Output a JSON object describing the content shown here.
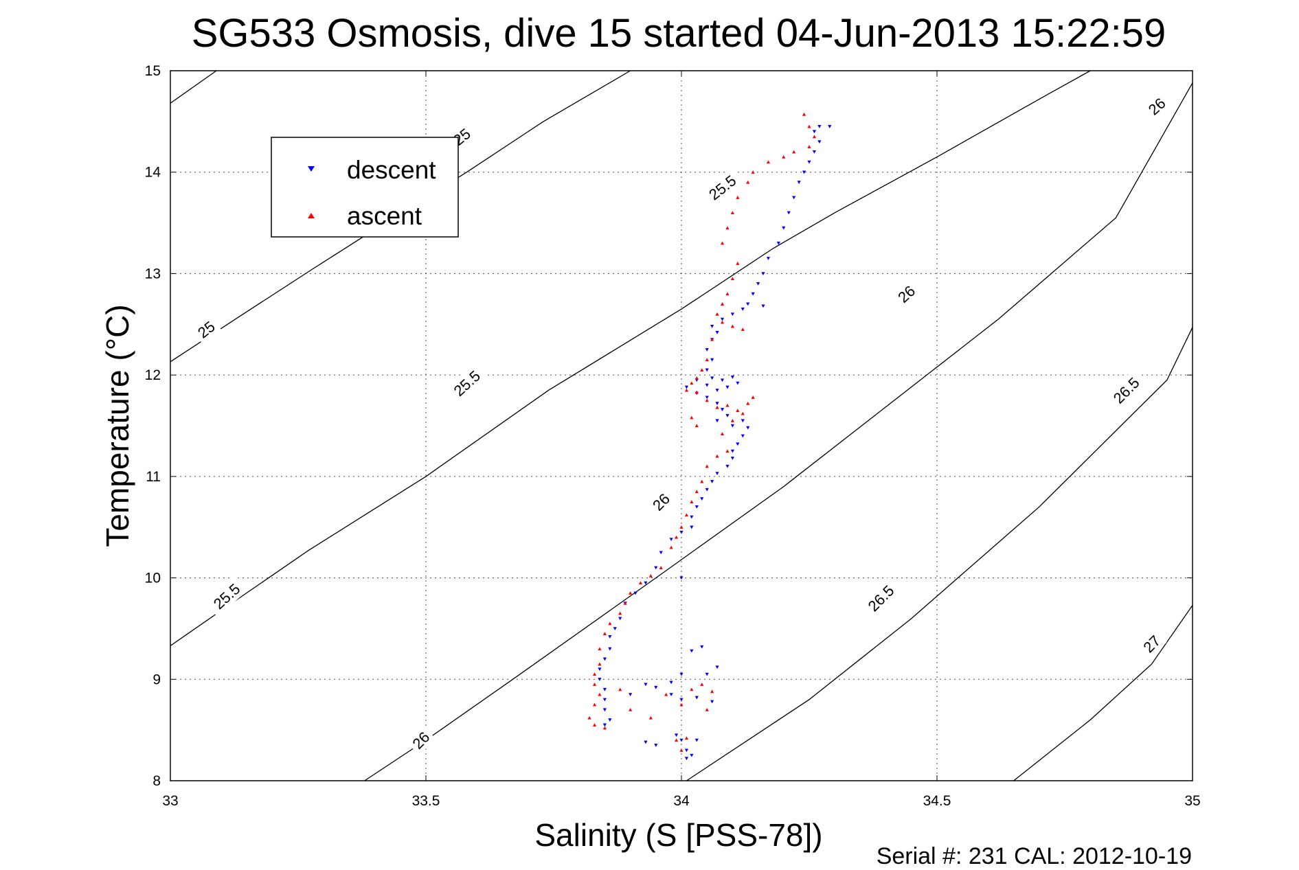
{
  "chart_data": {
    "type": "scatter",
    "title": "SG533 Osmosis, dive 15 started 04-Jun-2013 15:22:59",
    "xlabel": "Salinity (S [PSS-78])",
    "ylabel": "Temperature (°C)",
    "xlim": [
      33,
      35
    ],
    "ylim": [
      8,
      15
    ],
    "x_ticks": [
      "33",
      "33.5",
      "34",
      "34.5",
      "35"
    ],
    "y_ticks": [
      "8",
      "9",
      "10",
      "11",
      "12",
      "13",
      "14",
      "15"
    ],
    "grid": true,
    "legend_position": "top-left",
    "footer": "Serial #: 231  CAL: 2012-10-19",
    "density_contours": [
      {
        "value": "25",
        "points": [
          [
            33,
            14.68
          ],
          [
            33.09,
            15.0
          ]
        ]
      },
      {
        "value": "25",
        "points": [
          [
            33,
            12.13
          ],
          [
            33.13,
            12.56
          ],
          [
            33.28,
            13.05
          ],
          [
            33.42,
            13.5
          ],
          [
            33.58,
            14.0
          ],
          [
            33.73,
            14.5
          ],
          [
            33.9,
            15.0
          ]
        ]
      },
      {
        "value": "25.5",
        "points": [
          [
            33,
            9.33
          ],
          [
            33.12,
            9.75
          ],
          [
            33.27,
            10.27
          ],
          [
            33.5,
            11.0
          ],
          [
            33.74,
            11.85
          ],
          [
            34.0,
            12.65
          ],
          [
            34.18,
            13.25
          ],
          [
            34.3,
            13.6
          ],
          [
            34.5,
            14.15
          ],
          [
            34.7,
            14.72
          ],
          [
            34.8,
            15.0
          ]
        ]
      },
      {
        "value": "26",
        "points": [
          [
            33.38,
            8.0
          ],
          [
            33.5,
            8.4
          ],
          [
            33.67,
            9.0
          ],
          [
            33.95,
            10.0
          ],
          [
            34.2,
            10.9
          ],
          [
            34.48,
            12.0
          ],
          [
            34.62,
            12.55
          ],
          [
            34.85,
            13.55
          ],
          [
            35.0,
            14.88
          ]
        ]
      },
      {
        "value": "26.5",
        "points": [
          [
            34.01,
            8.0
          ],
          [
            34.25,
            8.8
          ],
          [
            34.45,
            9.6
          ],
          [
            34.7,
            10.7
          ],
          [
            34.95,
            11.95
          ],
          [
            35.0,
            12.47
          ]
        ]
      },
      {
        "value": "27",
        "points": [
          [
            34.65,
            8.0
          ],
          [
            34.8,
            8.6
          ],
          [
            34.92,
            9.15
          ],
          [
            35.0,
            9.73
          ]
        ]
      }
    ],
    "contour_labels": [
      {
        "text": "25",
        "x": 33.57,
        "y": 14.35,
        "angle": -38
      },
      {
        "text": "25",
        "x": 33.07,
        "y": 12.45,
        "angle": -38
      },
      {
        "text": "25.5",
        "x": 34.08,
        "y": 13.85,
        "angle": -38
      },
      {
        "text": "25.5",
        "x": 33.58,
        "y": 11.92,
        "angle": -42
      },
      {
        "text": "25.5",
        "x": 33.11,
        "y": 9.82,
        "angle": -42
      },
      {
        "text": "26",
        "x": 35.0,
        "y": 14.65,
        "angle": -42,
        "display_x": 34.93
      },
      {
        "text": "26",
        "x": 34.44,
        "y": 12.8,
        "angle": -42
      },
      {
        "text": "26",
        "x": 33.96,
        "y": 10.75,
        "angle": -45
      },
      {
        "text": "26",
        "x": 33.49,
        "y": 8.4,
        "angle": -45
      },
      {
        "text": "26.5",
        "x": 34.87,
        "y": 11.85,
        "angle": -45
      },
      {
        "text": "26.5",
        "x": 34.39,
        "y": 9.8,
        "angle": -45
      },
      {
        "text": "27",
        "x": 34.92,
        "y": 9.35,
        "angle": -45
      }
    ],
    "series": [
      {
        "name": "descent",
        "marker": "triangle-down",
        "color": "#0000ff",
        "points": [
          [
            34.27,
            14.45
          ],
          [
            34.29,
            14.45
          ],
          [
            34.26,
            14.4
          ],
          [
            34.27,
            14.3
          ],
          [
            34.26,
            14.2
          ],
          [
            34.25,
            14.1
          ],
          [
            34.24,
            14.0
          ],
          [
            34.23,
            13.9
          ],
          [
            34.22,
            13.75
          ],
          [
            34.21,
            13.6
          ],
          [
            34.2,
            13.45
          ],
          [
            34.19,
            13.3
          ],
          [
            34.17,
            13.15
          ],
          [
            34.16,
            13.0
          ],
          [
            34.15,
            12.9
          ],
          [
            34.14,
            12.8
          ],
          [
            34.13,
            12.7
          ],
          [
            34.16,
            12.68
          ],
          [
            34.12,
            12.65
          ],
          [
            34.1,
            12.6
          ],
          [
            34.08,
            12.55
          ],
          [
            34.06,
            12.48
          ],
          [
            34.07,
            12.42
          ],
          [
            34.06,
            12.35
          ],
          [
            34.05,
            12.25
          ],
          [
            34.06,
            12.15
          ],
          [
            34.05,
            12.05
          ],
          [
            34.06,
            11.97
          ],
          [
            34.08,
            11.95
          ],
          [
            34.1,
            11.98
          ],
          [
            34.11,
            11.92
          ],
          [
            34.09,
            11.88
          ],
          [
            34.07,
            11.85
          ],
          [
            34.05,
            11.9
          ],
          [
            34.03,
            11.95
          ],
          [
            34.01,
            11.88
          ],
          [
            34.03,
            11.82
          ],
          [
            34.05,
            11.78
          ],
          [
            34.07,
            11.72
          ],
          [
            34.08,
            11.66
          ],
          [
            34.09,
            11.6
          ],
          [
            34.07,
            11.55
          ],
          [
            34.1,
            11.5
          ],
          [
            34.12,
            11.55
          ],
          [
            34.13,
            11.48
          ],
          [
            34.12,
            11.4
          ],
          [
            34.11,
            11.32
          ],
          [
            34.1,
            11.25
          ],
          [
            34.1,
            11.18
          ],
          [
            34.09,
            11.1
          ],
          [
            34.07,
            11.03
          ],
          [
            34.06,
            10.95
          ],
          [
            34.05,
            10.87
          ],
          [
            34.04,
            10.78
          ],
          [
            34.03,
            10.7
          ],
          [
            34.02,
            10.6
          ],
          [
            34.02,
            10.5
          ],
          [
            34.0,
            10.45
          ],
          [
            33.98,
            10.38
          ],
          [
            33.96,
            10.25
          ],
          [
            33.95,
            10.1
          ],
          [
            34.0,
            10.0
          ],
          [
            33.93,
            9.95
          ],
          [
            33.91,
            9.85
          ],
          [
            33.89,
            9.75
          ],
          [
            33.88,
            9.6
          ],
          [
            33.87,
            9.5
          ],
          [
            33.86,
            9.42
          ],
          [
            33.86,
            9.3
          ],
          [
            33.85,
            9.2
          ],
          [
            33.84,
            9.1
          ],
          [
            33.84,
            9.0
          ],
          [
            33.85,
            8.9
          ],
          [
            33.85,
            8.8
          ],
          [
            33.85,
            8.7
          ],
          [
            33.86,
            8.6
          ],
          [
            33.85,
            8.55
          ],
          [
            33.9,
            8.85
          ],
          [
            33.93,
            8.95
          ],
          [
            33.95,
            8.92
          ],
          [
            33.98,
            8.85
          ],
          [
            34.0,
            8.8
          ],
          [
            34.03,
            8.82
          ],
          [
            34.06,
            8.78
          ],
          [
            34.05,
            9.05
          ],
          [
            34.07,
            9.12
          ],
          [
            34.04,
            9.32
          ],
          [
            34.02,
            9.28
          ],
          [
            34.0,
            9.05
          ],
          [
            33.98,
            8.97
          ],
          [
            33.93,
            8.38
          ],
          [
            33.95,
            8.35
          ],
          [
            34.0,
            8.4
          ],
          [
            34.01,
            8.3
          ],
          [
            34.02,
            8.25
          ],
          [
            34.01,
            8.22
          ],
          [
            34.03,
            8.4
          ],
          [
            33.99,
            8.45
          ]
        ]
      },
      {
        "name": "ascent",
        "marker": "triangle-up",
        "color": "#ff0000",
        "points": [
          [
            34.24,
            14.57
          ],
          [
            34.25,
            14.45
          ],
          [
            34.26,
            14.35
          ],
          [
            34.25,
            14.25
          ],
          [
            34.22,
            14.2
          ],
          [
            34.2,
            14.15
          ],
          [
            34.17,
            14.1
          ],
          [
            34.14,
            14.0
          ],
          [
            34.13,
            13.9
          ],
          [
            34.11,
            13.75
          ],
          [
            34.1,
            13.6
          ],
          [
            34.09,
            13.45
          ],
          [
            34.08,
            13.3
          ],
          [
            34.11,
            13.1
          ],
          [
            34.1,
            12.95
          ],
          [
            34.09,
            12.8
          ],
          [
            34.08,
            12.7
          ],
          [
            34.07,
            12.6
          ],
          [
            34.08,
            12.52
          ],
          [
            34.1,
            12.48
          ],
          [
            34.12,
            12.45
          ],
          [
            34.06,
            12.35
          ],
          [
            34.05,
            12.15
          ],
          [
            34.04,
            12.05
          ],
          [
            34.03,
            11.97
          ],
          [
            34.02,
            11.92
          ],
          [
            34.01,
            11.85
          ],
          [
            34.03,
            11.83
          ],
          [
            34.05,
            11.75
          ],
          [
            34.07,
            11.68
          ],
          [
            34.09,
            11.7
          ],
          [
            34.11,
            11.65
          ],
          [
            34.13,
            11.72
          ],
          [
            34.14,
            11.78
          ],
          [
            34.12,
            11.62
          ],
          [
            34.1,
            11.55
          ],
          [
            34.02,
            11.58
          ],
          [
            34.03,
            11.5
          ],
          [
            34.08,
            11.42
          ],
          [
            34.09,
            11.25
          ],
          [
            34.07,
            11.2
          ],
          [
            34.05,
            11.1
          ],
          [
            34.04,
            10.95
          ],
          [
            34.03,
            10.85
          ],
          [
            34.02,
            10.75
          ],
          [
            34.01,
            10.62
          ],
          [
            34.0,
            10.5
          ],
          [
            33.99,
            10.4
          ],
          [
            33.98,
            10.3
          ],
          [
            33.96,
            10.1
          ],
          [
            33.94,
            10.02
          ],
          [
            33.92,
            9.95
          ],
          [
            33.9,
            9.85
          ],
          [
            33.89,
            9.75
          ],
          [
            33.88,
            9.65
          ],
          [
            33.86,
            9.55
          ],
          [
            33.85,
            9.45
          ],
          [
            33.84,
            9.3
          ],
          [
            33.84,
            9.15
          ],
          [
            33.83,
            9.05
          ],
          [
            33.83,
            8.95
          ],
          [
            33.84,
            8.85
          ],
          [
            33.83,
            8.75
          ],
          [
            33.82,
            8.62
          ],
          [
            33.83,
            8.55
          ],
          [
            33.85,
            8.52
          ],
          [
            33.88,
            8.9
          ],
          [
            33.9,
            8.7
          ],
          [
            33.94,
            8.62
          ],
          [
            33.97,
            8.85
          ],
          [
            34.0,
            8.75
          ],
          [
            34.02,
            8.9
          ],
          [
            34.04,
            8.95
          ],
          [
            34.06,
            8.88
          ],
          [
            34.05,
            8.7
          ],
          [
            33.99,
            8.4
          ],
          [
            34.0,
            8.3
          ],
          [
            34.01,
            8.42
          ]
        ]
      }
    ]
  }
}
